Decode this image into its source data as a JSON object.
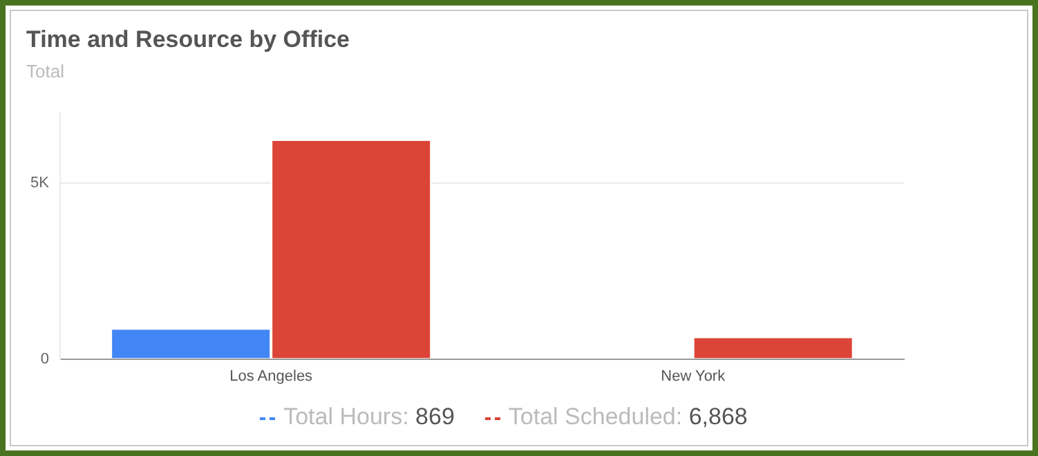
{
  "chart_data": {
    "type": "bar",
    "title": "Time and Resource by Office",
    "subtitle": "Total",
    "categories": [
      "Los Angeles",
      "New York"
    ],
    "series": [
      {
        "name": "Total Hours:",
        "color": "#4285f4",
        "values": [
          870,
          0
        ]
      },
      {
        "name": "Total Scheduled:",
        "color": "#db4437",
        "values": [
          6240,
          630
        ]
      }
    ],
    "ylim": [
      0,
      7000
    ],
    "yticks": [
      0,
      {
        "value": 5000,
        "label": "5K"
      }
    ],
    "grid": "y",
    "legend": "bottom",
    "annotations": [
      "869",
      "6,868"
    ]
  }
}
